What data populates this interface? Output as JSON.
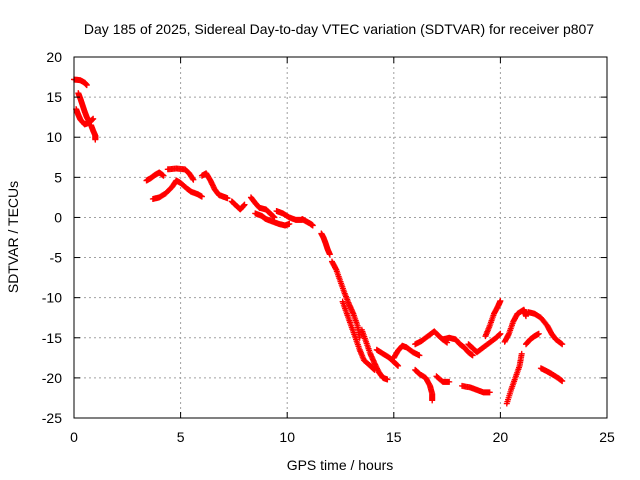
{
  "chart_data": {
    "type": "scatter",
    "title": "Day 185 of 2025, Sidereal Day-to-day VTEC variation (SDTVAR) for receiver p807",
    "xlabel": "GPS time / hours",
    "ylabel": "SDTVAR / TECUs",
    "xlim": [
      0,
      25
    ],
    "ylim": [
      -25,
      20
    ],
    "xticks": [
      0,
      5,
      10,
      15,
      20,
      25
    ],
    "yticks": [
      20,
      15,
      10,
      5,
      0,
      -5,
      -10,
      -15,
      -20,
      -25
    ],
    "xtick_labels": [
      "0",
      "5",
      "10",
      "15",
      "20",
      "25"
    ],
    "ytick_labels": [
      "20",
      "15",
      "10",
      "5",
      "0",
      "-5",
      "-10",
      "-15",
      "-20",
      "-25"
    ],
    "grid": true,
    "marker": "+",
    "color": "#ff0000",
    "series": [
      {
        "name": "SDTVAR",
        "segments": [
          [
            [
              0.0,
              17.2
            ],
            [
              0.3,
              17.1
            ],
            [
              0.5,
              16.8
            ],
            [
              0.6,
              16.5
            ]
          ],
          [
            [
              0.2,
              15.5
            ],
            [
              0.3,
              14.8
            ],
            [
              0.4,
              14.0
            ],
            [
              0.5,
              13.2
            ],
            [
              0.6,
              12.5
            ],
            [
              0.7,
              12.0
            ]
          ],
          [
            [
              0.1,
              13.5
            ],
            [
              0.2,
              12.8
            ],
            [
              0.3,
              12.2
            ],
            [
              0.5,
              11.6
            ],
            [
              0.7,
              11.8
            ],
            [
              0.9,
              12.3
            ]
          ],
          [
            [
              0.8,
              11.5
            ],
            [
              0.9,
              10.8
            ],
            [
              1.0,
              10.2
            ],
            [
              1.0,
              9.7
            ]
          ],
          [
            [
              3.4,
              4.6
            ],
            [
              3.6,
              4.9
            ],
            [
              3.8,
              5.3
            ],
            [
              4.0,
              5.6
            ],
            [
              4.2,
              5.2
            ]
          ],
          [
            [
              3.7,
              2.3
            ],
            [
              4.0,
              2.5
            ],
            [
              4.3,
              3.0
            ],
            [
              4.6,
              3.8
            ],
            [
              4.8,
              4.6
            ],
            [
              5.0,
              4.3
            ],
            [
              5.3,
              3.6
            ],
            [
              5.5,
              3.2
            ],
            [
              5.8,
              2.9
            ],
            [
              6.0,
              2.6
            ]
          ],
          [
            [
              4.4,
              6.0
            ],
            [
              4.8,
              6.1
            ],
            [
              5.2,
              6.0
            ],
            [
              5.4,
              5.5
            ],
            [
              5.6,
              4.7
            ]
          ],
          [
            [
              6.0,
              5.2
            ],
            [
              6.2,
              5.5
            ],
            [
              6.4,
              4.6
            ],
            [
              6.6,
              3.5
            ],
            [
              6.8,
              2.8
            ],
            [
              7.0,
              2.6
            ],
            [
              7.2,
              2.4
            ]
          ],
          [
            [
              7.4,
              2.0
            ],
            [
              7.6,
              1.5
            ],
            [
              7.8,
              1.0
            ],
            [
              8.0,
              1.6
            ]
          ],
          [
            [
              8.3,
              2.5
            ],
            [
              8.5,
              1.8
            ],
            [
              8.7,
              1.2
            ],
            [
              9.0,
              1.0
            ],
            [
              9.2,
              0.5
            ],
            [
              9.4,
              0.0
            ]
          ],
          [
            [
              8.5,
              0.5
            ],
            [
              8.8,
              0.2
            ],
            [
              9.0,
              -0.2
            ],
            [
              9.3,
              -0.5
            ],
            [
              9.6,
              -0.8
            ],
            [
              9.9,
              -1.0
            ],
            [
              10.1,
              -0.8
            ]
          ],
          [
            [
              9.5,
              0.8
            ],
            [
              9.8,
              0.5
            ],
            [
              10.1,
              0.0
            ],
            [
              10.4,
              -0.3
            ],
            [
              10.7,
              -0.3
            ]
          ],
          [
            [
              10.7,
              -0.2
            ],
            [
              10.9,
              -0.5
            ],
            [
              11.1,
              -0.8
            ],
            [
              11.2,
              -1.0
            ]
          ],
          [
            [
              11.6,
              -2.0
            ],
            [
              11.7,
              -2.5
            ],
            [
              11.8,
              -3.2
            ],
            [
              11.9,
              -4.0
            ],
            [
              12.0,
              -4.6
            ]
          ],
          [
            [
              12.1,
              -5.5
            ],
            [
              12.3,
              -6.5
            ],
            [
              12.5,
              -8.0
            ],
            [
              12.7,
              -9.5
            ],
            [
              12.9,
              -10.8
            ],
            [
              13.1,
              -12.0
            ],
            [
              13.3,
              -13.5
            ],
            [
              13.4,
              -15.0
            ]
          ],
          [
            [
              12.6,
              -10.5
            ],
            [
              12.8,
              -12.0
            ],
            [
              13.0,
              -13.5
            ],
            [
              13.2,
              -15.0
            ],
            [
              13.4,
              -16.5
            ],
            [
              13.6,
              -17.8
            ],
            [
              13.9,
              -18.5
            ],
            [
              14.1,
              -19.0
            ]
          ],
          [
            [
              13.5,
              -14.0
            ],
            [
              13.7,
              -15.5
            ],
            [
              13.9,
              -17.0
            ],
            [
              14.1,
              -18.2
            ],
            [
              14.3,
              -19.3
            ],
            [
              14.5,
              -20.0
            ],
            [
              14.7,
              -20.2
            ]
          ],
          [
            [
              14.2,
              -16.5
            ],
            [
              14.5,
              -17.0
            ],
            [
              14.8,
              -17.5
            ],
            [
              15.0,
              -18.0
            ],
            [
              15.2,
              -18.5
            ]
          ],
          [
            [
              15.0,
              -17.5
            ],
            [
              15.2,
              -16.6
            ],
            [
              15.4,
              -16.0
            ],
            [
              15.6,
              -16.2
            ],
            [
              15.9,
              -16.8
            ],
            [
              16.2,
              -17.2
            ]
          ],
          [
            [
              16.0,
              -15.8
            ],
            [
              16.3,
              -15.4
            ],
            [
              16.6,
              -14.8
            ],
            [
              16.9,
              -14.2
            ],
            [
              17.2,
              -15.0
            ],
            [
              17.5,
              -15.6
            ]
          ],
          [
            [
              16.0,
              -19.0
            ],
            [
              16.2,
              -19.5
            ],
            [
              16.5,
              -20.0
            ],
            [
              16.7,
              -21.0
            ],
            [
              16.8,
              -22.0
            ],
            [
              16.8,
              -22.8
            ]
          ],
          [
            [
              17.0,
              -19.8
            ],
            [
              17.3,
              -20.5
            ],
            [
              17.6,
              -20.5
            ]
          ],
          [
            [
              17.3,
              -15.2
            ],
            [
              17.6,
              -15.0
            ],
            [
              17.9,
              -15.2
            ],
            [
              18.1,
              -15.8
            ],
            [
              18.3,
              -16.2
            ],
            [
              18.5,
              -16.8
            ],
            [
              18.7,
              -17.2
            ]
          ],
          [
            [
              18.2,
              -21.0
            ],
            [
              18.6,
              -21.2
            ],
            [
              18.9,
              -21.5
            ],
            [
              19.2,
              -21.8
            ],
            [
              19.5,
              -21.8
            ]
          ],
          [
            [
              18.5,
              -15.8
            ],
            [
              18.7,
              -16.3
            ],
            [
              18.9,
              -16.8
            ],
            [
              19.2,
              -16.2
            ],
            [
              19.5,
              -15.6
            ],
            [
              19.8,
              -15.0
            ],
            [
              20.0,
              -14.5
            ]
          ],
          [
            [
              19.3,
              -14.8
            ],
            [
              19.5,
              -13.5
            ],
            [
              19.7,
              -12.0
            ],
            [
              19.9,
              -11.0
            ],
            [
              20.0,
              -10.4
            ]
          ],
          [
            [
              20.2,
              -15.5
            ],
            [
              20.4,
              -14.5
            ],
            [
              20.6,
              -13.0
            ],
            [
              20.8,
              -12.0
            ],
            [
              21.1,
              -11.5
            ],
            [
              21.2,
              -12.3
            ]
          ],
          [
            [
              20.3,
              -23.2
            ],
            [
              20.5,
              -21.5
            ],
            [
              20.7,
              -20.0
            ],
            [
              20.9,
              -18.5
            ],
            [
              21.0,
              -17.0
            ]
          ],
          [
            [
              21.2,
              -15.8
            ],
            [
              21.4,
              -15.2
            ],
            [
              21.6,
              -14.8
            ],
            [
              21.8,
              -14.5
            ]
          ],
          [
            [
              21.3,
              -11.8
            ],
            [
              21.6,
              -12.0
            ],
            [
              21.9,
              -12.5
            ],
            [
              22.2,
              -13.5
            ],
            [
              22.4,
              -14.5
            ],
            [
              22.6,
              -15.2
            ],
            [
              22.9,
              -15.8
            ]
          ],
          [
            [
              21.9,
              -18.8
            ],
            [
              22.2,
              -19.2
            ],
            [
              22.4,
              -19.5
            ],
            [
              22.7,
              -20.0
            ],
            [
              22.9,
              -20.4
            ]
          ]
        ]
      }
    ]
  }
}
